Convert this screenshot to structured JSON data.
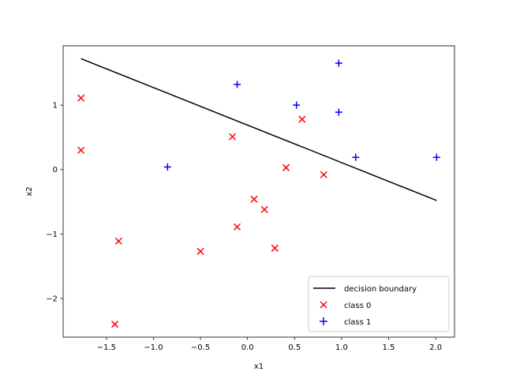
{
  "chart_data": {
    "type": "scatter",
    "title": "",
    "xlabel": "x1",
    "ylabel": "x2",
    "xlim": [
      -1.96,
      2.2
    ],
    "ylim": [
      -2.6,
      1.92
    ],
    "xticks": [
      {
        "value": -1.5,
        "label": "−1.5"
      },
      {
        "value": -1.0,
        "label": "−1.0"
      },
      {
        "value": -0.5,
        "label": "−0.5"
      },
      {
        "value": 0.0,
        "label": "0.0"
      },
      {
        "value": 0.5,
        "label": "0.5"
      },
      {
        "value": 1.0,
        "label": "1.0"
      },
      {
        "value": 1.5,
        "label": "1.5"
      },
      {
        "value": 2.0,
        "label": "2.0"
      }
    ],
    "yticks": [
      {
        "value": -2,
        "label": "−2"
      },
      {
        "value": -1,
        "label": "−1"
      },
      {
        "value": 0,
        "label": "0"
      },
      {
        "value": 1,
        "label": "1"
      }
    ],
    "grid": false,
    "legend_position": "lower-right",
    "decision_boundary": {
      "name": "decision boundary",
      "color": "#000000",
      "points": [
        [
          -1.77,
          1.72
        ],
        [
          2.01,
          -0.48
        ]
      ]
    },
    "series": [
      {
        "name": "class 0",
        "marker": "x",
        "color": "#ff0000",
        "points": [
          [
            -1.77,
            1.11
          ],
          [
            -1.77,
            0.3
          ],
          [
            -1.37,
            -1.11
          ],
          [
            -1.41,
            -2.4
          ],
          [
            -0.5,
            -1.27
          ],
          [
            -0.16,
            0.51
          ],
          [
            -0.11,
            -0.89
          ],
          [
            0.07,
            -0.46
          ],
          [
            0.18,
            -0.62
          ],
          [
            0.29,
            -1.22
          ],
          [
            0.41,
            0.03
          ],
          [
            0.58,
            0.78
          ],
          [
            0.81,
            -0.08
          ]
        ]
      },
      {
        "name": "class 1",
        "marker": "+",
        "color": "#0000ff",
        "points": [
          [
            -0.85,
            0.04
          ],
          [
            -0.11,
            1.32
          ],
          [
            0.52,
            1.0
          ],
          [
            0.97,
            0.89
          ],
          [
            0.97,
            1.65
          ],
          [
            1.15,
            0.19
          ],
          [
            2.01,
            0.19
          ]
        ]
      }
    ]
  }
}
